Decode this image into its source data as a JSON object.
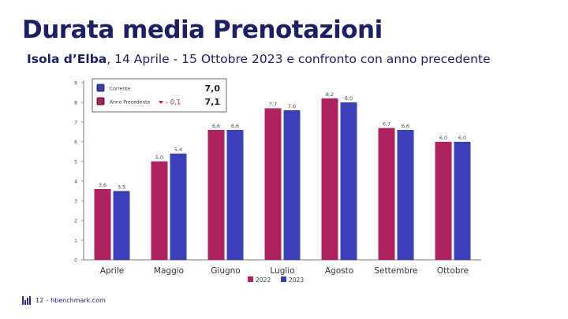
{
  "slide": {
    "title": "Durata media Prenotazioni",
    "subtitle_bold": "Isola d’Elba",
    "subtitle_rest": ", 14 Aprile - 15 Ottobre 2023 e confronto con anno precedente",
    "footer_page": "12",
    "footer_separator": "-",
    "footer_site": "hbenchmark.com"
  },
  "chart_data": {
    "type": "bar",
    "categories": [
      "Aprile",
      "Maggio",
      "Giugno",
      "Luglio",
      "Agosto",
      "Settembre",
      "Ottobre"
    ],
    "series": [
      {
        "name": "2022",
        "color": "#b0215f",
        "values": [
          3.6,
          5.0,
          6.6,
          7.7,
          8.2,
          6.7,
          6.0
        ],
        "labels": [
          "3,6",
          "5,0",
          "6,6",
          "7,7",
          "8,2",
          "6,7",
          "6,0"
        ]
      },
      {
        "name": "2023",
        "color": "#3a3fb6",
        "values": [
          3.5,
          5.4,
          6.6,
          7.6,
          8.0,
          6.6,
          6.0
        ],
        "labels": [
          "3,5",
          "5,4",
          "6,6",
          "7,6",
          "8,0",
          "6,6",
          "6,0"
        ]
      }
    ],
    "ylim": [
      0,
      9
    ],
    "yticks": [
      "0",
      "1",
      "2",
      "3",
      "4",
      "5",
      "6",
      "7",
      "8",
      "9"
    ],
    "grid": false,
    "legend_position": "bottom",
    "summary_box": {
      "rows": [
        {
          "label": "Corrente",
          "value": "7,0",
          "color": "#3a3fb6",
          "delta": ""
        },
        {
          "label": "Anno Precedente",
          "value": "7,1",
          "color": "#b0215f",
          "delta": "- 0,1",
          "delta_icon": "triangle-down-icon"
        }
      ]
    }
  }
}
